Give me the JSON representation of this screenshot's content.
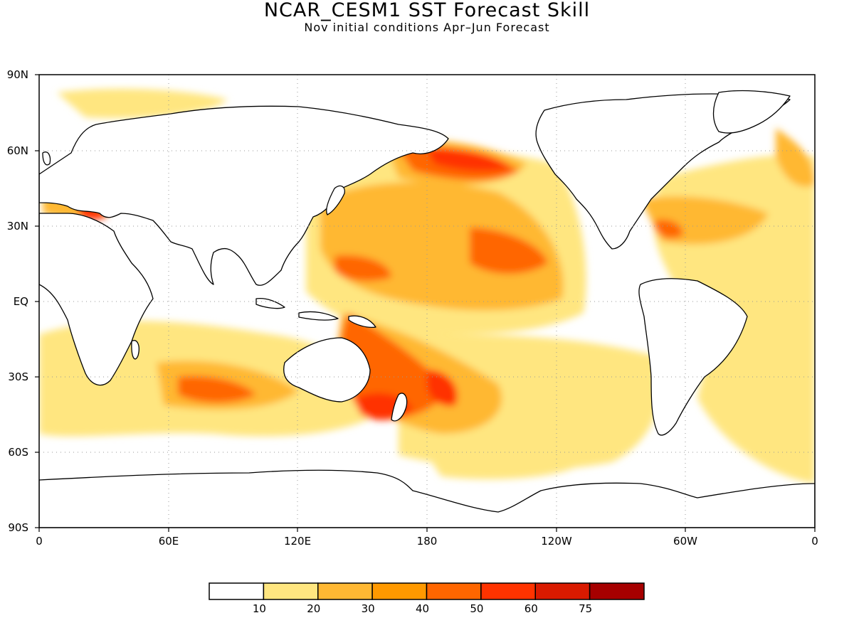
{
  "title": "NCAR_CESM1  SST Forecast Skill",
  "subtitle": "Nov initial conditions  Apr–Jun Forecast",
  "axes": {
    "lat_labels": [
      "90N",
      "60N",
      "30N",
      "EQ",
      "30S",
      "60S",
      "90S"
    ],
    "lon_labels": [
      "0",
      "60E",
      "120E",
      "180",
      "120W",
      "60W",
      "0"
    ],
    "lat_range": [
      -90,
      90
    ],
    "lon_range": [
      0,
      360
    ],
    "grid": "dotted"
  },
  "colorbar": {
    "colors": [
      "#ffffff",
      "#ffe680",
      "#ffb833",
      "#ff9900",
      "#ff6600",
      "#ff3300",
      "#d91a00",
      "#a60000"
    ],
    "ticks": [
      "10",
      "20",
      "30",
      "40",
      "50",
      "60",
      "75"
    ]
  }
}
